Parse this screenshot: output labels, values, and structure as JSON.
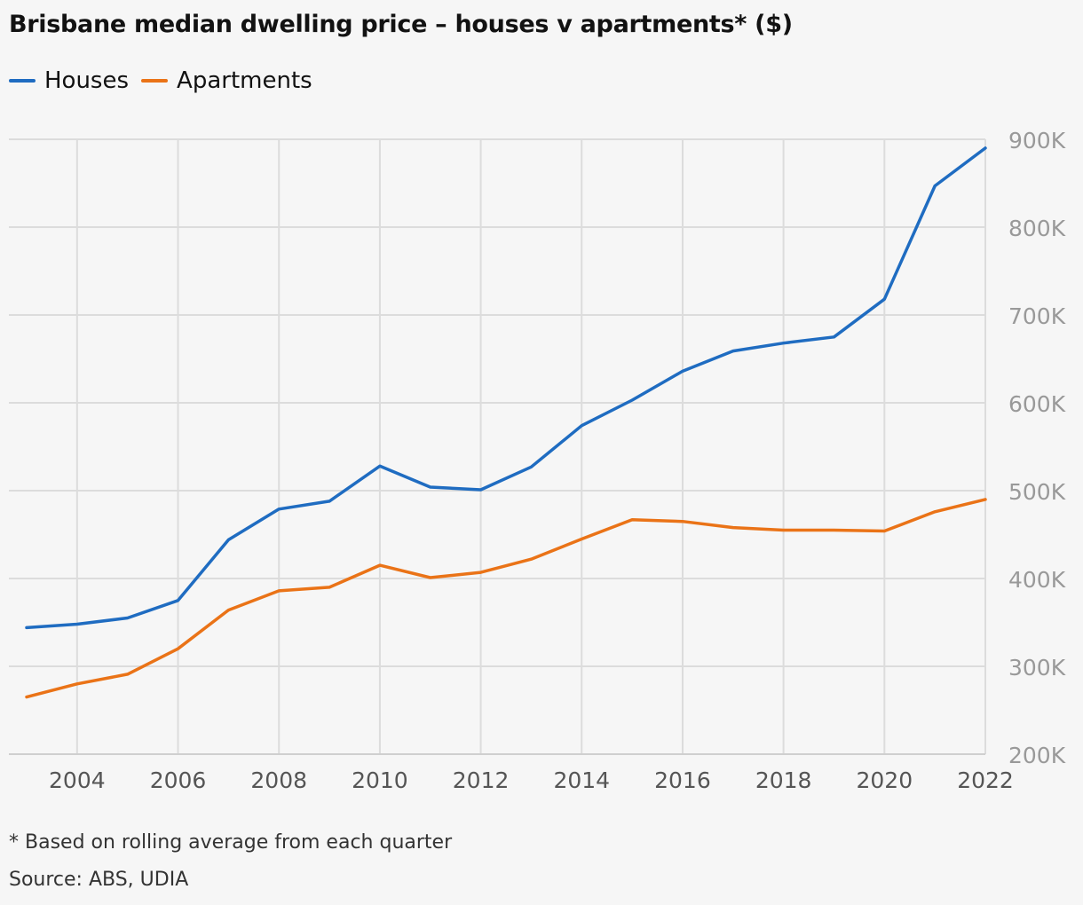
{
  "title": "Brisbane median dwelling price – houses v apartments* ($)",
  "footnote": "* Based on rolling average from each quarter",
  "source": "Source: ABS, UDIA",
  "colors": {
    "houses": "#1f6cc1",
    "apartments": "#ea7317",
    "grid": "#dcdcdc",
    "axis_text": "#999999",
    "background": "#f6f6f6"
  },
  "chart_data": {
    "type": "line",
    "title": "Brisbane median dwelling price – houses v apartments* ($)",
    "xlabel": "",
    "ylabel": "",
    "x": [
      2003,
      2004,
      2005,
      2006,
      2007,
      2008,
      2009,
      2010,
      2011,
      2012,
      2013,
      2014,
      2015,
      2016,
      2017,
      2018,
      2019,
      2020,
      2021,
      2022
    ],
    "series": [
      {
        "name": "Houses",
        "color": "#1f6cc1",
        "values": [
          344000,
          348000,
          355000,
          375000,
          444000,
          479000,
          488000,
          528000,
          504000,
          501000,
          527000,
          574000,
          603000,
          636000,
          659000,
          668000,
          675000,
          718000,
          847000,
          890000
        ]
      },
      {
        "name": "Apartments",
        "color": "#ea7317",
        "values": [
          265000,
          280000,
          291000,
          320000,
          364000,
          386000,
          390000,
          415000,
          401000,
          407000,
          422000,
          445000,
          467000,
          465000,
          458000,
          455000,
          455000,
          454000,
          476000,
          490000
        ]
      }
    ],
    "xticks": [
      2004,
      2006,
      2008,
      2010,
      2012,
      2014,
      2016,
      2018,
      2020,
      2022
    ],
    "xtick_labels": [
      "2004",
      "2006",
      "2008",
      "2010",
      "2012",
      "2014",
      "2016",
      "2018",
      "2020",
      "2022"
    ],
    "yticks": [
      200000,
      300000,
      400000,
      500000,
      600000,
      700000,
      800000,
      900000
    ],
    "ytick_labels": [
      "200K",
      "300K",
      "400K",
      "500K",
      "600K",
      "700K",
      "800K",
      "900K"
    ],
    "xlim": [
      2003,
      2022
    ],
    "ylim": [
      200000,
      900000
    ],
    "y_axis_side": "right",
    "grid": true,
    "legend": "top-left"
  }
}
